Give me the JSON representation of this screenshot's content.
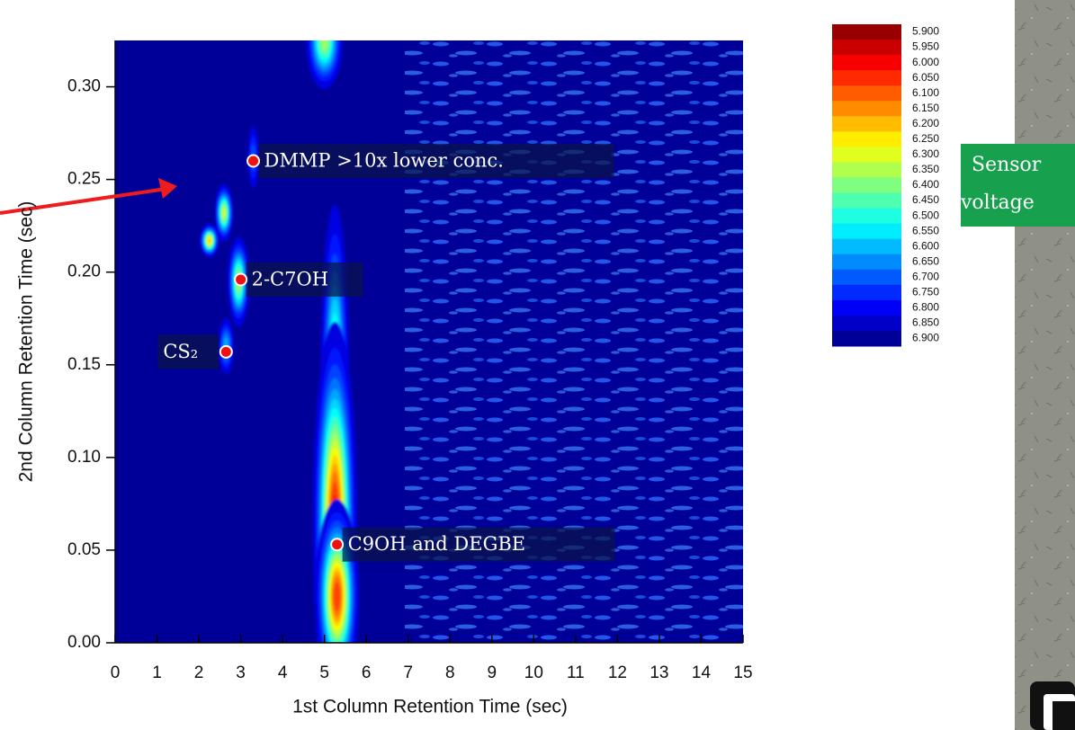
{
  "chart_data": {
    "type": "heatmap",
    "xlabel": "1st Column Retention Time (sec)",
    "ylabel": "2nd Column Retention Time (sec)",
    "xlim": [
      0,
      15
    ],
    "ylim": [
      0,
      0.325
    ],
    "xticks": [
      0,
      1,
      2,
      3,
      4,
      5,
      6,
      7,
      8,
      9,
      10,
      11,
      12,
      13,
      14,
      15
    ],
    "yticks": [
      {
        "value": 0,
        "label": "0.00"
      },
      {
        "value": 0.05,
        "label": "0.05"
      },
      {
        "value": 0.1,
        "label": "0.10"
      },
      {
        "value": 0.15,
        "label": "0.15"
      },
      {
        "value": 0.2,
        "label": "0.20"
      },
      {
        "value": 0.25,
        "label": "0.25"
      },
      {
        "value": 0.3,
        "label": "0.30"
      }
    ],
    "colormap": "jet",
    "colorbar": {
      "lim": [
        5.875,
        6.925
      ],
      "ticks": [
        {
          "value": 5.9,
          "label": "5.900"
        },
        {
          "value": 5.95,
          "label": "5.950"
        },
        {
          "value": 6.0,
          "label": "6.000"
        },
        {
          "value": 6.05,
          "label": "6.050"
        },
        {
          "value": 6.1,
          "label": "6.100"
        },
        {
          "value": 6.15,
          "label": "6.150"
        },
        {
          "value": 6.2,
          "label": "6.200"
        },
        {
          "value": 6.25,
          "label": "6.250"
        },
        {
          "value": 6.3,
          "label": "6.300"
        },
        {
          "value": 6.35,
          "label": "6.350"
        },
        {
          "value": 6.4,
          "label": "6.400"
        },
        {
          "value": 6.45,
          "label": "6.450"
        },
        {
          "value": 6.5,
          "label": "6.500"
        },
        {
          "value": 6.55,
          "label": "6.550"
        },
        {
          "value": 6.6,
          "label": "6.600"
        },
        {
          "value": 6.65,
          "label": "6.650"
        },
        {
          "value": 6.7,
          "label": "6.700"
        },
        {
          "value": 6.75,
          "label": "6.750"
        },
        {
          "value": 6.8,
          "label": "6.800"
        },
        {
          "value": 6.85,
          "label": "6.850"
        },
        {
          "value": 6.9,
          "label": "6.900"
        }
      ]
    },
    "peaks": [
      {
        "x": 5.0,
        "y": 0.325,
        "value": 6.35,
        "xwidth": 0.2,
        "ywidth": 0.012
      },
      {
        "x": 2.6,
        "y": 0.232,
        "value": 6.3,
        "xwidth": 0.1,
        "ywidth": 0.007
      },
      {
        "x": 2.25,
        "y": 0.217,
        "value": 6.2,
        "xwidth": 0.1,
        "ywidth": 0.004
      },
      {
        "x": 2.95,
        "y": 0.195,
        "value": 6.35,
        "xwidth": 0.12,
        "ywidth": 0.011
      },
      {
        "x": 2.65,
        "y": 0.16,
        "value": 6.6,
        "xwidth": 0.1,
        "ywidth": 0.008
      },
      {
        "x": 3.3,
        "y": 0.262,
        "value": 6.7,
        "xwidth": 0.08,
        "ywidth": 0.01
      },
      {
        "x": 5.25,
        "y": 0.14,
        "value": 6.4,
        "xwidth": 0.16,
        "ywidth": 0.045
      },
      {
        "x": 5.25,
        "y": 0.065,
        "value": 6.0,
        "xwidth": 0.22,
        "ywidth": 0.045
      },
      {
        "x": 5.3,
        "y": 0.025,
        "value": 6.05,
        "xwidth": 0.22,
        "ywidth": 0.022
      }
    ],
    "annotations": [
      {
        "text": "DMMP >10x lower conc.",
        "x": 3.3,
        "y": 0.26
      },
      {
        "text": "2-C7OH",
        "x": 3.0,
        "y": 0.196
      },
      {
        "text": "CS₂",
        "x": 2.65,
        "y": 0.157
      },
      {
        "text": "C9OH and DEGBE",
        "x": 5.3,
        "y": 0.053
      }
    ]
  },
  "side_label": [
    "Sensor",
    "voltage"
  ]
}
